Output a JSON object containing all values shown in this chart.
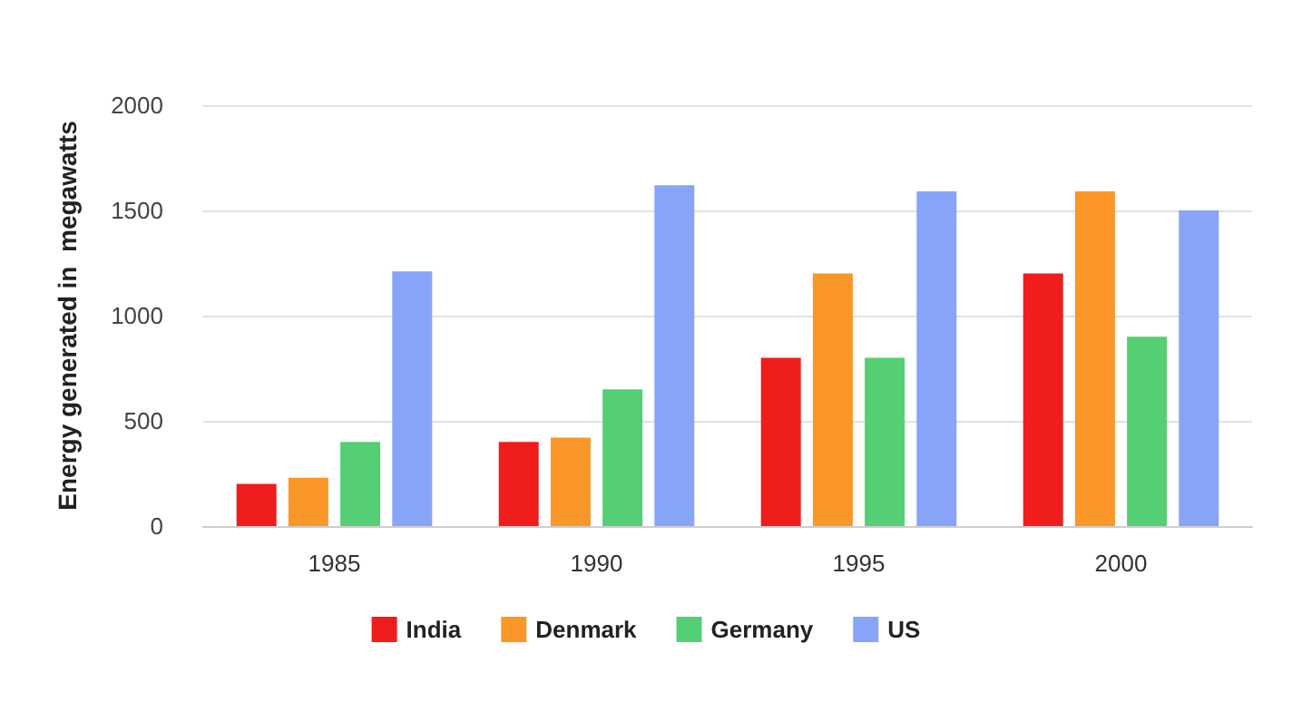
{
  "chart_data": {
    "type": "bar",
    "ylabel": "Energy generated in  megawatts",
    "categories": [
      "1985",
      "1990",
      "1995",
      "2000"
    ],
    "series": [
      {
        "name": "India",
        "color": "#f01d1d",
        "values": [
          200,
          400,
          800,
          1200
        ]
      },
      {
        "name": "Denmark",
        "color": "#fb9628",
        "values": [
          230,
          420,
          1200,
          1590
        ]
      },
      {
        "name": "Germany",
        "color": "#55cf74",
        "values": [
          400,
          650,
          800,
          900
        ]
      },
      {
        "name": "US",
        "color": "#87a4f8",
        "values": [
          1210,
          1620,
          1590,
          1500
        ]
      }
    ],
    "ylim": [
      0,
      2000
    ],
    "yticks": [
      0,
      500,
      1000,
      1500,
      2000
    ],
    "grid": "y",
    "legend": "bottom"
  }
}
